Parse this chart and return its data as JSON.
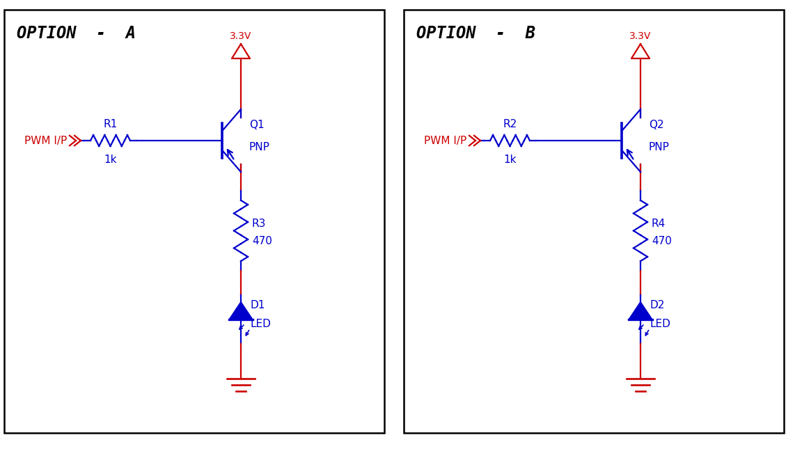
{
  "bg_color": "#ffffff",
  "wire_color": "#cc0000",
  "component_color": "#0000cc",
  "text_color_black": "#000000",
  "text_color_red": "#cc0000",
  "text_color_blue": "#0000cc",
  "dot_color": "#aaaacc",
  "panel_A": {
    "title": "OPTION  -  A",
    "vcc_label": "3.3V",
    "pwm_label": "PWM I/P",
    "r_label": "R1",
    "r_val": "1k",
    "q_label": "Q1",
    "q_type": "PNP",
    "r2_label": "R3",
    "r2_val": "470",
    "d_label": "D1",
    "d_type": "LED"
  },
  "panel_B": {
    "title": "OPTION  -  B",
    "vcc_label": "3.3V",
    "pwm_label": "PWM I/P",
    "r_label": "R2",
    "r_val": "1k",
    "q_label": "Q2",
    "q_type": "PNP",
    "r2_label": "R4",
    "r2_val": "470",
    "d_label": "D2",
    "d_type": "LED"
  }
}
